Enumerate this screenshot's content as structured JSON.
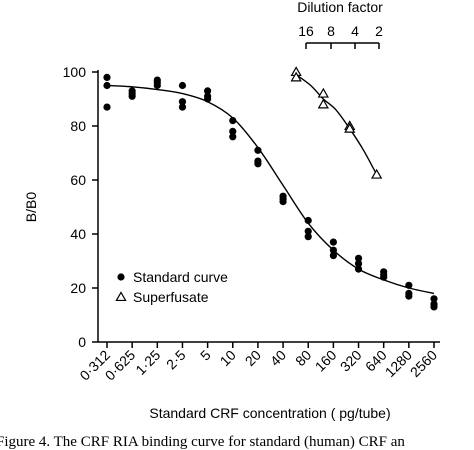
{
  "chart_data": {
    "type": "scatter",
    "title": "",
    "ylabel": "B/B0",
    "xlabel": "Standard CRF concentration ( pg/tube)",
    "ylim": [
      0,
      100
    ],
    "yticks": [
      0,
      20,
      40,
      60,
      80,
      100
    ],
    "categories": [
      "0·312",
      "0·625",
      "1·25",
      "2·5",
      "5",
      "10",
      "20",
      "40",
      "80",
      "160",
      "320",
      "640",
      "1280",
      "2560"
    ],
    "secondary_axis": {
      "label": "Dilution factor",
      "ticks": [
        "16",
        "8",
        "4",
        "2"
      ]
    },
    "legend": {
      "placement": "bottom-left",
      "entries": [
        "Standard curve",
        "Superfusate"
      ]
    },
    "series": [
      {
        "name": "Standard curve",
        "marker": "filled-circle",
        "points": [
          {
            "x": 0,
            "y": 98
          },
          {
            "x": 0,
            "y": 95
          },
          {
            "x": 0,
            "y": 87
          },
          {
            "x": 1,
            "y": 93
          },
          {
            "x": 1,
            "y": 92
          },
          {
            "x": 1,
            "y": 91
          },
          {
            "x": 2,
            "y": 97
          },
          {
            "x": 2,
            "y": 96
          },
          {
            "x": 2,
            "y": 95
          },
          {
            "x": 3,
            "y": 95
          },
          {
            "x": 3,
            "y": 89
          },
          {
            "x": 3,
            "y": 87
          },
          {
            "x": 4,
            "y": 93
          },
          {
            "x": 4,
            "y": 91
          },
          {
            "x": 4,
            "y": 90
          },
          {
            "x": 5,
            "y": 82
          },
          {
            "x": 5,
            "y": 78
          },
          {
            "x": 5,
            "y": 76
          },
          {
            "x": 6,
            "y": 71
          },
          {
            "x": 6,
            "y": 67
          },
          {
            "x": 6,
            "y": 66
          },
          {
            "x": 7,
            "y": 54
          },
          {
            "x": 7,
            "y": 53
          },
          {
            "x": 7,
            "y": 52
          },
          {
            "x": 8,
            "y": 45
          },
          {
            "x": 8,
            "y": 41
          },
          {
            "x": 8,
            "y": 39
          },
          {
            "x": 9,
            "y": 37
          },
          {
            "x": 9,
            "y": 34
          },
          {
            "x": 9,
            "y": 32
          },
          {
            "x": 10,
            "y": 31
          },
          {
            "x": 10,
            "y": 29
          },
          {
            "x": 10,
            "y": 27
          },
          {
            "x": 11,
            "y": 26
          },
          {
            "x": 11,
            "y": 25
          },
          {
            "x": 11,
            "y": 24
          },
          {
            "x": 12,
            "y": 21
          },
          {
            "x": 12,
            "y": 18
          },
          {
            "x": 12,
            "y": 17
          },
          {
            "x": 13,
            "y": 16
          },
          {
            "x": 13,
            "y": 14
          },
          {
            "x": 13,
            "y": 13
          }
        ]
      },
      {
        "name": "Superfusate",
        "marker": "open-triangle",
        "points": [
          {
            "x": 7.52,
            "y": 100
          },
          {
            "x": 7.52,
            "y": 98
          },
          {
            "x": 8.6,
            "y": 92
          },
          {
            "x": 8.6,
            "y": 88
          },
          {
            "x": 9.65,
            "y": 80
          },
          {
            "x": 9.65,
            "y": 79
          },
          {
            "x": 10.72,
            "y": 62
          }
        ]
      }
    ],
    "fit_curves": [
      {
        "series": "Standard curve",
        "points": [
          {
            "x": 0,
            "y": 95
          },
          {
            "x": 1,
            "y": 94.5
          },
          {
            "x": 2,
            "y": 93.5
          },
          {
            "x": 3,
            "y": 92
          },
          {
            "x": 4,
            "y": 89
          },
          {
            "x": 5,
            "y": 83
          },
          {
            "x": 6,
            "y": 72
          },
          {
            "x": 7,
            "y": 58
          },
          {
            "x": 8,
            "y": 44
          },
          {
            "x": 9,
            "y": 34
          },
          {
            "x": 10,
            "y": 27
          },
          {
            "x": 11,
            "y": 23
          },
          {
            "x": 12,
            "y": 20
          },
          {
            "x": 13,
            "y": 18
          }
        ]
      },
      {
        "series": "Superfusate",
        "points": [
          {
            "x": 7.52,
            "y": 99
          },
          {
            "x": 8.1,
            "y": 95
          },
          {
            "x": 8.6,
            "y": 90
          },
          {
            "x": 9.1,
            "y": 86
          },
          {
            "x": 9.65,
            "y": 79
          },
          {
            "x": 10.2,
            "y": 71
          },
          {
            "x": 10.72,
            "y": 62
          }
        ]
      }
    ]
  },
  "caption": "Figure 4. The CRF RIA binding curve for standard (human) CRF an"
}
